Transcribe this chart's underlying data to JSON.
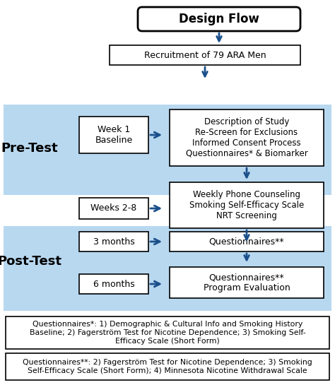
{
  "bg_color": "#ffffff",
  "light_blue": "#b8d8f0",
  "arrow_color": "#1a4f8a",
  "text_color": "#000000",
  "title": "Design Flow",
  "recruitment_text": "Recruitment of 79 ARA Men",
  "pre_test_label": "Pre-Test",
  "post_test_label": "Post-Test",
  "week1_text": "Week 1\nBaseline",
  "description_text": "Description of Study\nRe-Screen for Exclusions\nInformed Consent Process\nQuestionnaires* & Biomarker",
  "weeks28_text": "Weeks 2-8",
  "weekly_text": "Weekly Phone Counseling\nSmoking Self-Efficacy Scale\nNRT Screening",
  "months3_text": "3 months",
  "quest3_text": "Questionnaires**",
  "months6_text": "6 months",
  "quest6_text": "Questionnaires**\nProgram Evaluation",
  "footnote1_text": "Questionnaires*: 1) Demographic & Cultural Info and Smoking History\nBaseline; 2) Fagerström Test for Nicotine Dependence; 3) Smoking Self-\nEfficacy Scale (Short Form)",
  "footnote2_text": "Questionnaires**: 2) Fagerström Test for Nicotine Dependence; 3) Smoking\nSelf-Efficacy Scale (Short Form); 4) Minnesota Nicotine Withdrawal Scale"
}
